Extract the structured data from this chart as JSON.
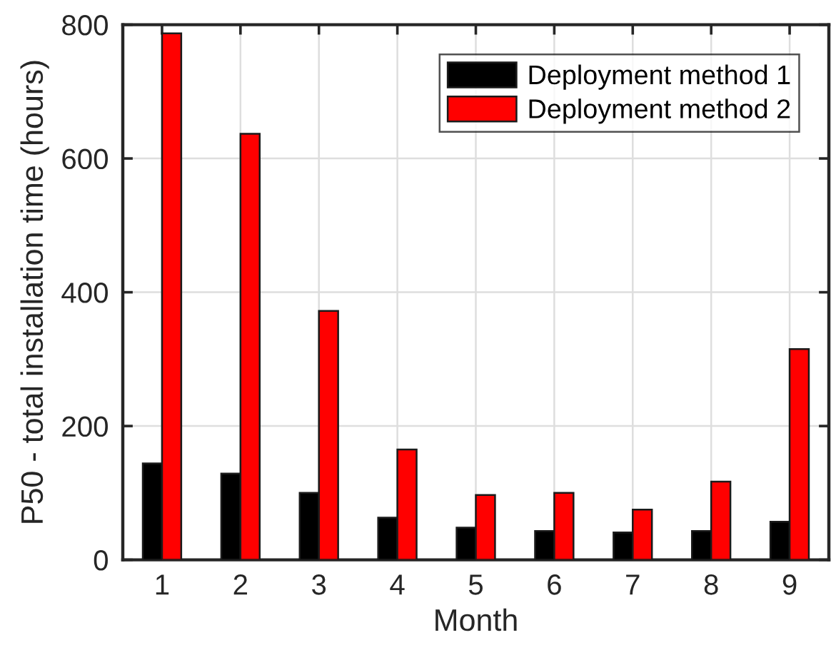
{
  "chart_data": {
    "type": "bar",
    "xlabel": "Month",
    "ylabel": "P50 - total installation time (hours)",
    "categories": [
      "1",
      "2",
      "3",
      "4",
      "5",
      "6",
      "7",
      "8",
      "9"
    ],
    "series": [
      {
        "name": "Deployment method 1",
        "color": "#000000",
        "values": [
          144,
          129,
          100,
          63,
          48,
          43,
          41,
          43,
          57
        ]
      },
      {
        "name": "Deployment method 2",
        "color": "#ff0000",
        "values": [
          787,
          637,
          372,
          165,
          97,
          100,
          75,
          117,
          315
        ]
      }
    ],
    "ylim": [
      0,
      800
    ],
    "yticks": [
      0,
      200,
      400,
      600,
      800
    ],
    "grid": true,
    "legend": "top right"
  }
}
